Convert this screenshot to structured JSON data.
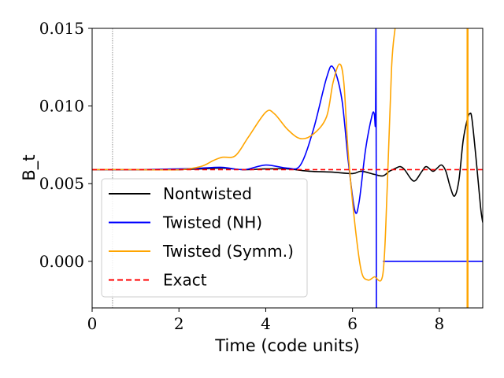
{
  "chart_data": {
    "type": "line",
    "title": "",
    "xlabel": "Time (code units)",
    "ylabel": "B_t",
    "xlim": [
      0,
      9
    ],
    "ylim": [
      -0.003,
      0.015
    ],
    "x_ticks": [
      0,
      2,
      4,
      6,
      8
    ],
    "x_tick_labels": [
      "0",
      "2",
      "4",
      "6",
      "8"
    ],
    "y_ticks": [
      0.0,
      0.005,
      0.01,
      0.015
    ],
    "y_tick_labels": [
      "0.000",
      "0.005",
      "0.010",
      "0.015"
    ],
    "grid": false,
    "legend_position": "lower-left",
    "reference_vline_x": 0.47,
    "series": [
      {
        "name": "Nontwisted",
        "color": "#000000",
        "dash": "solid",
        "points": [
          [
            0,
            0.0059
          ],
          [
            0.5,
            0.0059
          ],
          [
            1,
            0.0059
          ],
          [
            1.5,
            0.0059
          ],
          [
            2,
            0.0059
          ],
          [
            2.5,
            0.00595
          ],
          [
            3,
            0.006
          ],
          [
            3.5,
            0.0059
          ],
          [
            4,
            0.00595
          ],
          [
            4.5,
            0.00595
          ],
          [
            5,
            0.0058
          ],
          [
            5.5,
            0.00575
          ],
          [
            6,
            0.00565
          ],
          [
            6.2,
            0.0058
          ],
          [
            6.5,
            0.0056
          ],
          [
            6.7,
            0.0055
          ],
          [
            6.85,
            0.0058
          ],
          [
            7,
            0.006
          ],
          [
            7.1,
            0.0061
          ],
          [
            7.2,
            0.0059
          ],
          [
            7.35,
            0.0053
          ],
          [
            7.45,
            0.0052
          ],
          [
            7.6,
            0.0058
          ],
          [
            7.7,
            0.0061
          ],
          [
            7.85,
            0.0058
          ],
          [
            7.95,
            0.006
          ],
          [
            8.05,
            0.0062
          ],
          [
            8.15,
            0.0058
          ],
          [
            8.25,
            0.0048
          ],
          [
            8.35,
            0.0042
          ],
          [
            8.45,
            0.0052
          ],
          [
            8.55,
            0.0078
          ],
          [
            8.65,
            0.0092
          ],
          [
            8.7,
            0.0095
          ],
          [
            8.75,
            0.0092
          ],
          [
            8.85,
            0.0065
          ],
          [
            8.95,
            0.0035
          ],
          [
            9,
            0.0025
          ]
        ]
      },
      {
        "name": "Twisted (NH)",
        "color": "#0000ff",
        "dash": "solid",
        "points": [
          [
            0,
            0.0059
          ],
          [
            1,
            0.0059
          ],
          [
            2,
            0.00595
          ],
          [
            2.5,
            0.006
          ],
          [
            3,
            0.00605
          ],
          [
            3.5,
            0.0059
          ],
          [
            4,
            0.0062
          ],
          [
            4.5,
            0.006
          ],
          [
            4.8,
            0.0062
          ],
          [
            5.1,
            0.0085
          ],
          [
            5.4,
            0.0118
          ],
          [
            5.55,
            0.0125
          ],
          [
            5.75,
            0.0105
          ],
          [
            5.9,
            0.0065
          ],
          [
            6.05,
            0.0033
          ],
          [
            6.15,
            0.0038
          ],
          [
            6.3,
            0.0072
          ],
          [
            6.45,
            0.0094
          ],
          [
            6.5,
            0.0095
          ],
          [
            6.53,
            0.009
          ],
          [
            6.54,
            0.015
          ],
          [
            6.55,
            -0.003
          ]
        ]
      },
      {
        "name": "Twisted (NH) tail",
        "color": "#0000ff",
        "dash": "solid",
        "points": [
          [
            6.7,
            0.0
          ],
          [
            9,
            0.0
          ]
        ]
      },
      {
        "name": "Twisted (Symm.)",
        "color": "#ffa500",
        "dash": "solid",
        "points": [
          [
            0,
            0.0059
          ],
          [
            1,
            0.0059
          ],
          [
            2,
            0.0059
          ],
          [
            2.5,
            0.0061
          ],
          [
            2.8,
            0.0065
          ],
          [
            3,
            0.0067
          ],
          [
            3.3,
            0.0068
          ],
          [
            3.6,
            0.008
          ],
          [
            4,
            0.0096
          ],
          [
            4.2,
            0.0095
          ],
          [
            4.5,
            0.0085
          ],
          [
            4.8,
            0.0079
          ],
          [
            5.1,
            0.0082
          ],
          [
            5.4,
            0.0093
          ],
          [
            5.55,
            0.0115
          ],
          [
            5.7,
            0.0127
          ],
          [
            5.8,
            0.0115
          ],
          [
            5.9,
            0.007
          ],
          [
            6.05,
            0.0025
          ],
          [
            6.2,
            -0.0006
          ],
          [
            6.35,
            -0.0012
          ],
          [
            6.5,
            -0.001
          ],
          [
            6.7,
            -0.0008
          ],
          [
            6.8,
            0.0048
          ],
          [
            6.9,
            0.0125
          ],
          [
            6.98,
            0.015
          ],
          [
            7.0,
            0.0155
          ]
        ]
      },
      {
        "name": "Twisted (Symm.) spike",
        "color": "#ffa500",
        "dash": "solid",
        "points": [
          [
            8.65,
            0.015
          ],
          [
            8.65,
            -0.003
          ]
        ]
      },
      {
        "name": "Exact",
        "color": "#ff0000",
        "dash": "dashed",
        "points": [
          [
            0,
            0.0059
          ],
          [
            9,
            0.0059
          ]
        ]
      }
    ],
    "legend": [
      {
        "label": "Nontwisted",
        "color": "#000000",
        "dash": "solid"
      },
      {
        "label": "Twisted (NH)",
        "color": "#0000ff",
        "dash": "solid"
      },
      {
        "label": "Twisted (Symm.)",
        "color": "#ffa500",
        "dash": "solid"
      },
      {
        "label": "Exact",
        "color": "#ff0000",
        "dash": "dashed"
      }
    ]
  }
}
